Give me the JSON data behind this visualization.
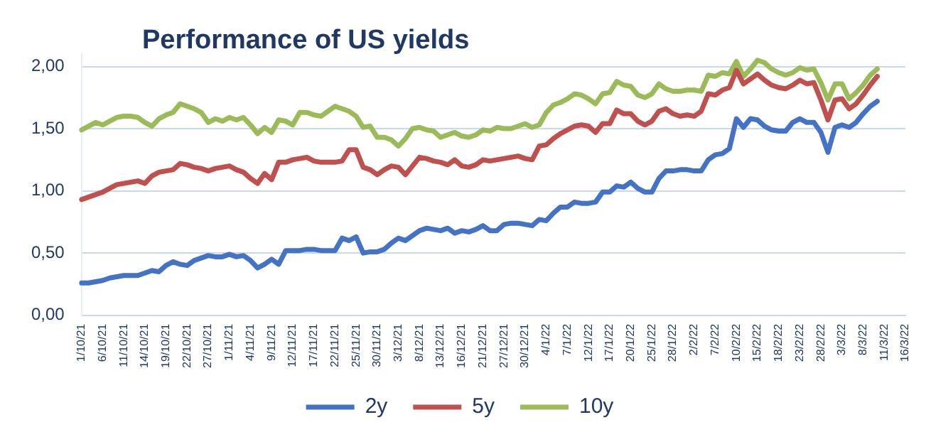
{
  "chart_data": {
    "type": "line",
    "title": "Performance of US yields",
    "categories": [
      "1/10/21",
      null,
      null,
      "6/10/21",
      null,
      null,
      "11/10/21",
      null,
      null,
      "14/10/21",
      null,
      null,
      "19/10/21",
      null,
      null,
      "22/10/21",
      null,
      null,
      "27/10/21",
      null,
      null,
      "1/11/21",
      null,
      null,
      "4/11/21",
      null,
      null,
      "9/11/21",
      null,
      null,
      "12/11/21",
      null,
      null,
      "17/11/21",
      null,
      null,
      "22/11/21",
      null,
      null,
      "25/11/21",
      null,
      null,
      "30/11/21",
      null,
      null,
      "3/12/21",
      null,
      null,
      "8/12/21",
      null,
      null,
      "13/12/21",
      null,
      null,
      "16/12/21",
      null,
      null,
      "21/12/21",
      null,
      null,
      "27/12/21",
      null,
      null,
      "30/12/21",
      null,
      null,
      "4/1/22",
      null,
      null,
      "7/1/22",
      null,
      null,
      "12/1/22",
      null,
      null,
      "17/1/22",
      null,
      null,
      "20/1/22",
      null,
      null,
      "25/1/22",
      null,
      null,
      "28/1/22",
      null,
      null,
      "2/2/22",
      null,
      null,
      "7/2/22",
      null,
      null,
      "10/2/22",
      null,
      null,
      "15/2/22",
      null,
      null,
      "18/2/22",
      null,
      null,
      "23/2/22",
      null,
      null,
      "28/2/22",
      null,
      null,
      "3/3/22",
      null,
      null,
      "8/3/22",
      null,
      null,
      "11/3/22",
      null,
      null,
      "16/3/22"
    ],
    "series": [
      {
        "name": "2y",
        "color": "#4472c4",
        "values": [
          0.26,
          0.26,
          0.27,
          0.28,
          0.3,
          0.31,
          0.32,
          0.32,
          0.32,
          0.34,
          0.36,
          0.35,
          0.4,
          0.43,
          0.41,
          0.4,
          0.44,
          0.46,
          0.48,
          0.47,
          0.47,
          0.49,
          0.47,
          0.48,
          0.44,
          0.38,
          0.41,
          0.45,
          0.41,
          0.52,
          0.52,
          0.52,
          0.53,
          0.53,
          0.52,
          0.52,
          0.52,
          0.62,
          0.6,
          0.63,
          0.5,
          0.51,
          0.51,
          0.53,
          0.58,
          0.62,
          0.6,
          0.64,
          0.68,
          0.7,
          0.69,
          0.68,
          0.7,
          0.66,
          0.68,
          0.67,
          0.69,
          0.72,
          0.68,
          0.68,
          0.73,
          0.74,
          0.74,
          0.73,
          0.72,
          0.77,
          0.76,
          0.82,
          0.87,
          0.87,
          0.91,
          0.9,
          0.9,
          0.91,
          0.99,
          0.99,
          1.04,
          1.03,
          1.07,
          1.02,
          0.99,
          0.99,
          1.1,
          1.16,
          1.16,
          1.17,
          1.17,
          1.16,
          1.16,
          1.25,
          1.29,
          1.3,
          1.34,
          1.58,
          1.51,
          1.58,
          1.57,
          1.52,
          1.49,
          1.48,
          1.48,
          1.55,
          1.58,
          1.55,
          1.55,
          1.47,
          1.31,
          1.51,
          1.53,
          1.51,
          1.55,
          1.62,
          1.68,
          1.72,
          null,
          null,
          null,
          null
        ]
      },
      {
        "name": "5y",
        "color": "#c0504d",
        "values": [
          0.93,
          0.95,
          0.97,
          0.99,
          1.02,
          1.05,
          1.06,
          1.07,
          1.08,
          1.06,
          1.12,
          1.15,
          1.16,
          1.17,
          1.22,
          1.21,
          1.19,
          1.18,
          1.16,
          1.18,
          1.19,
          1.2,
          1.17,
          1.15,
          1.1,
          1.06,
          1.14,
          1.09,
          1.23,
          1.23,
          1.25,
          1.26,
          1.27,
          1.24,
          1.23,
          1.23,
          1.23,
          1.24,
          1.33,
          1.33,
          1.19,
          1.17,
          1.13,
          1.17,
          1.2,
          1.19,
          1.13,
          1.2,
          1.27,
          1.26,
          1.24,
          1.23,
          1.21,
          1.25,
          1.2,
          1.19,
          1.21,
          1.25,
          1.24,
          1.25,
          1.26,
          1.27,
          1.28,
          1.26,
          1.25,
          1.36,
          1.37,
          1.42,
          1.46,
          1.49,
          1.52,
          1.53,
          1.52,
          1.47,
          1.54,
          1.54,
          1.65,
          1.62,
          1.62,
          1.56,
          1.53,
          1.56,
          1.64,
          1.66,
          1.62,
          1.6,
          1.61,
          1.6,
          1.64,
          1.78,
          1.77,
          1.81,
          1.83,
          1.97,
          1.86,
          1.9,
          1.94,
          1.89,
          1.85,
          1.83,
          1.82,
          1.85,
          1.89,
          1.86,
          1.87,
          1.73,
          1.57,
          1.73,
          1.74,
          1.66,
          1.7,
          1.77,
          1.85,
          1.92,
          null,
          null,
          null,
          null
        ]
      },
      {
        "name": "10y",
        "color": "#9bbb59",
        "values": [
          1.49,
          1.52,
          1.55,
          1.53,
          1.56,
          1.59,
          1.6,
          1.6,
          1.59,
          1.55,
          1.52,
          1.58,
          1.61,
          1.63,
          1.7,
          1.68,
          1.66,
          1.63,
          1.55,
          1.58,
          1.56,
          1.59,
          1.57,
          1.59,
          1.53,
          1.46,
          1.51,
          1.47,
          1.57,
          1.56,
          1.53,
          1.63,
          1.63,
          1.61,
          1.6,
          1.64,
          1.68,
          1.66,
          1.64,
          1.6,
          1.51,
          1.52,
          1.43,
          1.43,
          1.41,
          1.36,
          1.42,
          1.5,
          1.51,
          1.49,
          1.48,
          1.43,
          1.45,
          1.47,
          1.44,
          1.43,
          1.45,
          1.49,
          1.48,
          1.51,
          1.5,
          1.5,
          1.52,
          1.54,
          1.51,
          1.53,
          1.63,
          1.69,
          1.71,
          1.74,
          1.78,
          1.77,
          1.74,
          1.7,
          1.78,
          1.79,
          1.88,
          1.85,
          1.84,
          1.77,
          1.75,
          1.78,
          1.86,
          1.82,
          1.8,
          1.8,
          1.81,
          1.81,
          1.8,
          1.93,
          1.92,
          1.95,
          1.94,
          2.04,
          1.92,
          1.98,
          2.05,
          2.03,
          1.98,
          1.95,
          1.93,
          1.95,
          1.99,
          1.97,
          1.98,
          1.87,
          1.73,
          1.86,
          1.86,
          1.74,
          1.79,
          1.85,
          1.93,
          1.98,
          null,
          null,
          null,
          null
        ]
      }
    ],
    "ylim": [
      0,
      2.1
    ],
    "yticks": [
      {
        "value": 0,
        "label": "0,00"
      },
      {
        "value": 0.5,
        "label": "0,50"
      },
      {
        "value": 1,
        "label": "1,00"
      },
      {
        "value": 1.5,
        "label": "1,50"
      },
      {
        "value": 2,
        "label": "2,00"
      }
    ],
    "grid": "y",
    "legend": "bottom",
    "marker": "none",
    "line_style": "solid"
  }
}
